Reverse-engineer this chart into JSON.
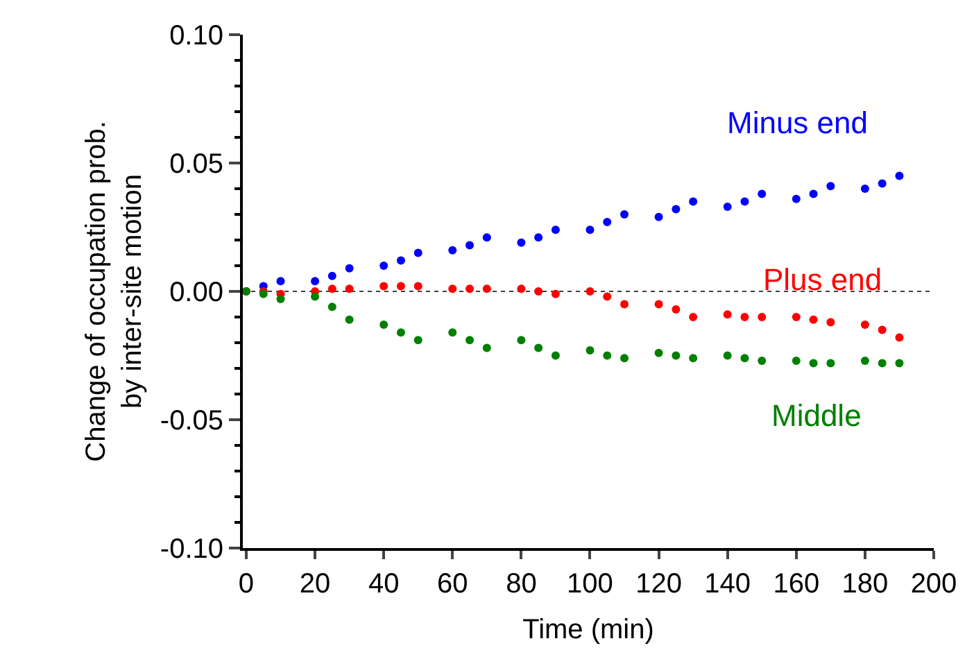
{
  "chart_data": {
    "type": "scatter",
    "xlabel": "Time (min)",
    "ylabel": "Change of occupation prob.\nby inter-site motion",
    "xlim": [
      -1,
      200
    ],
    "xticks": [
      0,
      20,
      40,
      60,
      80,
      100,
      120,
      140,
      160,
      180,
      200
    ],
    "ylim": [
      -0.1,
      0.1
    ],
    "yticks": [
      {
        "value": -0.1,
        "label": "-0.10"
      },
      {
        "value": -0.05,
        "label": "-0.05"
      },
      {
        "value": 0,
        "label": "0.00"
      },
      {
        "value": 0.05,
        "label": "0.05"
      },
      {
        "value": 0.1,
        "label": "0.10"
      }
    ],
    "x": [
      0,
      5,
      10,
      20,
      25,
      30,
      40,
      45,
      50,
      60,
      65,
      70,
      80,
      85,
      90,
      100,
      105,
      110,
      120,
      125,
      130,
      140,
      145,
      150,
      160,
      165,
      170,
      180,
      185,
      190
    ],
    "series": [
      {
        "name": "Minus end",
        "color": "#0000ff",
        "values": [
          0.0,
          0.002,
          0.004,
          0.004,
          0.006,
          0.009,
          0.01,
          0.012,
          0.015,
          0.016,
          0.018,
          0.021,
          0.019,
          0.021,
          0.024,
          0.024,
          0.027,
          0.03,
          0.029,
          0.032,
          0.035,
          0.033,
          0.035,
          0.038,
          0.036,
          0.038,
          0.041,
          0.04,
          0.042,
          0.045
        ]
      },
      {
        "name": "Plus end",
        "color": "#ff0000",
        "values": [
          0.0,
          0.0,
          -0.001,
          0.0,
          0.001,
          0.001,
          0.002,
          0.002,
          0.002,
          0.001,
          0.001,
          0.001,
          0.001,
          0.0,
          -0.001,
          0.0,
          -0.002,
          -0.005,
          -0.005,
          -0.007,
          -0.01,
          -0.009,
          -0.01,
          -0.01,
          -0.01,
          -0.011,
          -0.012,
          -0.013,
          -0.015,
          -0.018
        ]
      },
      {
        "name": "Middle",
        "color": "#008000",
        "values": [
          0.0,
          -0.001,
          -0.003,
          -0.002,
          -0.006,
          -0.011,
          -0.013,
          -0.016,
          -0.019,
          -0.016,
          -0.019,
          -0.022,
          -0.019,
          -0.022,
          -0.025,
          -0.023,
          -0.025,
          -0.026,
          -0.024,
          -0.025,
          -0.026,
          -0.025,
          -0.026,
          -0.027,
          -0.027,
          -0.028,
          -0.028,
          -0.027,
          -0.028,
          -0.028
        ]
      }
    ],
    "ref_lines": [
      {
        "axis": "y",
        "value": 0,
        "color": "#404040",
        "line_style": "dotted"
      }
    ],
    "marker": "circle",
    "grid": false,
    "legend": false
  }
}
